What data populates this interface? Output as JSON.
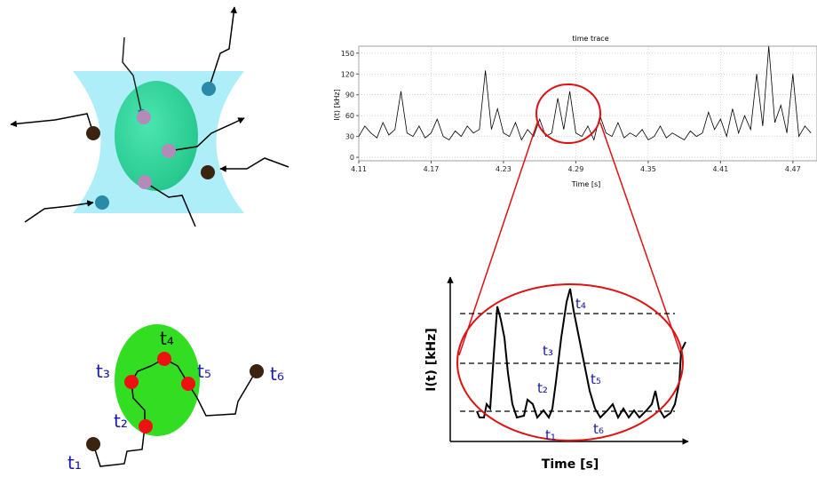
{
  "chart_data": {
    "type": "line",
    "title": "time trace",
    "x_label": "Time [s]",
    "y_label": "I(t) [kHz]",
    "x": [
      4.11,
      4.115,
      4.12,
      4.125,
      4.13,
      4.135,
      4.14,
      4.145,
      4.15,
      4.155,
      4.16,
      4.165,
      4.17,
      4.175,
      4.18,
      4.185,
      4.19,
      4.195,
      4.2,
      4.205,
      4.21,
      4.215,
      4.22,
      4.225,
      4.23,
      4.235,
      4.24,
      4.245,
      4.25,
      4.255,
      4.26,
      4.265,
      4.27,
      4.275,
      4.28,
      4.285,
      4.29,
      4.295,
      4.3,
      4.305,
      4.31,
      4.315,
      4.32,
      4.325,
      4.33,
      4.335,
      4.34,
      4.345,
      4.35,
      4.355,
      4.36,
      4.365,
      4.37,
      4.375,
      4.38,
      4.385,
      4.39,
      4.395,
      4.4,
      4.405,
      4.41,
      4.415,
      4.42,
      4.425,
      4.43,
      4.435,
      4.44,
      4.445,
      4.45,
      4.455,
      4.46,
      4.465,
      4.47,
      4.475,
      4.48,
      4.485
    ],
    "series": [
      {
        "color": "#000000",
        "values": [
          30,
          45,
          35,
          28,
          50,
          32,
          40,
          95,
          35,
          30,
          45,
          28,
          35,
          55,
          30,
          25,
          38,
          30,
          45,
          35,
          40,
          125,
          40,
          70,
          35,
          30,
          50,
          25,
          40,
          30,
          55,
          30,
          35,
          85,
          40,
          95,
          35,
          30,
          45,
          25,
          60,
          35,
          30,
          50,
          28,
          35,
          30,
          40,
          25,
          30,
          45,
          28,
          35,
          30,
          25,
          38,
          30,
          35,
          65,
          40,
          55,
          30,
          70,
          35,
          60,
          40,
          120,
          45,
          160,
          50,
          75,
          35,
          120,
          30,
          45,
          35
        ]
      }
    ],
    "xlim": [
      4.11,
      4.49
    ],
    "ylim": [
      -5,
      160
    ],
    "xticks": [
      4.11,
      4.17,
      4.23,
      4.29,
      4.35,
      4.41,
      4.47
    ],
    "yticks": [
      0,
      30,
      60,
      90,
      120,
      150
    ],
    "grid": true
  },
  "zoom": {
    "y_label": "I(t) [kHz]",
    "x_label": "Time [s]",
    "marks": [
      "t₁",
      "t₂",
      "t₃",
      "t₄",
      "t₅",
      "t₆"
    ]
  },
  "path_diagram": {
    "marks": [
      "t₁",
      "t₂",
      "t₃",
      "t₄",
      "t₅",
      "t₆"
    ]
  }
}
